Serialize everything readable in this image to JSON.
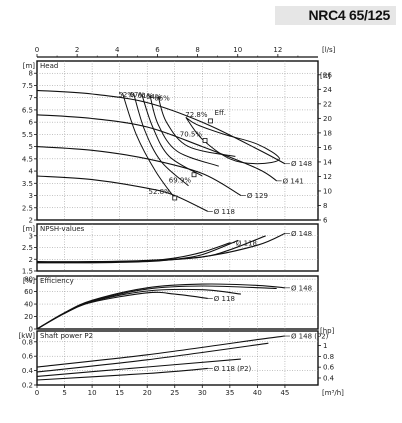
{
  "header": {
    "model_title": "NRC4 65/125"
  },
  "chart_data": [
    {
      "type": "line",
      "id": "head",
      "title": "Head",
      "x_axis_top": {
        "label": "[l/s]",
        "range": [
          0,
          14
        ],
        "ticks": [
          "0",
          "2",
          "4",
          "6",
          "8",
          "10",
          "12"
        ]
      },
      "y_left": {
        "unit": "[m]",
        "range": [
          2,
          8.5
        ],
        "ticks": [
          "2",
          "2.5",
          "3",
          "3.5",
          "4",
          "4.5",
          "5",
          "5.5",
          "6",
          "6.5",
          "7",
          "7.5",
          "8"
        ]
      },
      "y_right": {
        "unit": "[ft]",
        "range": [
          6,
          27.9
        ],
        "ticks": [
          "6",
          "8",
          "10",
          "12",
          "14",
          "16",
          "18",
          "20",
          "22",
          "24",
          "26"
        ]
      },
      "series": [
        {
          "name": "Ø 148",
          "x": [
            0,
            10,
            20,
            30,
            40,
            45
          ],
          "y": [
            7.3,
            7.15,
            6.8,
            6.0,
            4.9,
            4.3
          ]
        },
        {
          "name": "Ø 141",
          "x": [
            0,
            10,
            20,
            30,
            40,
            43.5
          ],
          "y": [
            6.3,
            6.15,
            5.8,
            5.0,
            4.1,
            3.6
          ]
        },
        {
          "name": "Ø 129",
          "x": [
            0,
            10,
            20,
            30,
            37
          ],
          "y": [
            5.0,
            4.85,
            4.5,
            3.9,
            3.0
          ]
        },
        {
          "name": "Ø 118",
          "x": [
            0,
            10,
            20,
            25,
            31
          ],
          "y": [
            3.8,
            3.65,
            3.3,
            3.0,
            2.35
          ]
        }
      ],
      "efficiency_isolines": [
        {
          "label": "52%",
          "x": [
            15.5,
            18,
            21.5,
            25
          ],
          "y": [
            7.2,
            5.5,
            4.0,
            2.9
          ]
        },
        {
          "label": "67%",
          "x": [
            17.5,
            19.5,
            22.5,
            27.5
          ],
          "y": [
            7.2,
            5.7,
            4.4,
            3.4
          ]
        },
        {
          "label": "61%",
          "x": [
            19.0,
            21,
            24,
            30
          ],
          "y": [
            7.15,
            5.8,
            4.6,
            3.8
          ]
        },
        {
          "label": "64%",
          "x": [
            20.5,
            22,
            25.5,
            33
          ],
          "y": [
            7.1,
            5.9,
            4.8,
            4.2
          ]
        },
        {
          "label": "66%",
          "x": [
            22.0,
            23.5,
            27.5,
            36
          ],
          "y": [
            7.05,
            6.0,
            5.0,
            4.6
          ]
        }
      ],
      "efficiency_loop": {
        "x": [
          27,
          30,
          35,
          40,
          44,
          40,
          34,
          29,
          27
        ],
        "y": [
          6.2,
          5.3,
          4.5,
          4.3,
          4.5,
          5.1,
          5.5,
          5.9,
          6.2
        ]
      },
      "eff_curve_label": "Eff.",
      "markers": [
        {
          "label": "72.8%",
          "x": 31.5,
          "y": 6.05
        },
        {
          "label": "70.5%",
          "x": 30.5,
          "y": 5.25
        },
        {
          "label": "69.9%",
          "x": 28.5,
          "y": 3.85
        },
        {
          "label": "52.8%",
          "x": 25.0,
          "y": 2.9
        }
      ]
    },
    {
      "type": "line",
      "id": "npsh",
      "title": "NPSH-values",
      "y_left": {
        "unit": "[m]",
        "range": [
          1.5,
          3.5
        ],
        "ticks": [
          "1.5",
          "2",
          "2.5",
          "3"
        ]
      },
      "series": [
        {
          "name": "Ø 148",
          "x": [
            0,
            10,
            20,
            30,
            40,
            45
          ],
          "y": [
            1.9,
            1.9,
            1.95,
            2.1,
            2.6,
            3.1
          ]
        },
        {
          "name": "Ø 118",
          "x": [
            0,
            10,
            20,
            25,
            30,
            35
          ],
          "y": [
            1.88,
            1.88,
            1.93,
            2.05,
            2.3,
            2.7
          ]
        },
        {
          "name": "",
          "x": [
            0,
            10,
            20,
            25,
            30,
            36.5
          ],
          "y": [
            1.85,
            1.85,
            1.9,
            2.0,
            2.2,
            2.8
          ]
        },
        {
          "name": "",
          "x": [
            0,
            10,
            20,
            30,
            35,
            41.5
          ],
          "y": [
            1.87,
            1.87,
            1.92,
            2.1,
            2.4,
            3.0
          ]
        }
      ]
    },
    {
      "type": "line",
      "id": "efficiency",
      "title": "Efficiency",
      "y_left": {
        "unit": "[%]",
        "range": [
          0,
          85
        ],
        "ticks": [
          "0",
          "20",
          "40",
          "60",
          "80"
        ]
      },
      "series": [
        {
          "name": "Ø 148",
          "x": [
            0,
            5,
            10,
            20,
            30,
            40,
            45
          ],
          "y": [
            0,
            26,
            46,
            66,
            72,
            70,
            66
          ]
        },
        {
          "name": "Ø 118",
          "x": [
            0,
            5,
            10,
            20,
            25,
            31
          ],
          "y": [
            0,
            25,
            43,
            58,
            56,
            49
          ]
        },
        {
          "name": "",
          "x": [
            0,
            5,
            10,
            20,
            30,
            37
          ],
          "y": [
            0,
            25,
            44,
            61,
            63,
            56
          ]
        },
        {
          "name": "",
          "x": [
            0,
            5,
            10,
            20,
            30,
            43.5
          ],
          "y": [
            0,
            26,
            45,
            64,
            69,
            65
          ]
        }
      ]
    },
    {
      "type": "line",
      "id": "power",
      "title": "Shaft power P2",
      "x_axis_bottom": {
        "label": "[m³/h]",
        "range": [
          0,
          51
        ],
        "ticks": [
          "0",
          "5",
          "10",
          "15",
          "20",
          "25",
          "30",
          "35",
          "40",
          "45"
        ]
      },
      "y_left": {
        "unit": "[kW]",
        "range": [
          0.2,
          0.95
        ],
        "ticks": [
          "0.2",
          "0.4",
          "0.6",
          "0.8"
        ]
      },
      "y_right": {
        "unit": "[hp]",
        "range": [
          0.27,
          1.27
        ],
        "ticks": [
          "0.4",
          "0.6",
          "0.8",
          "1"
        ]
      },
      "series": [
        {
          "name": "Ø 148 (P2)",
          "x": [
            0,
            20,
            40,
            45
          ],
          "y": [
            0.45,
            0.62,
            0.83,
            0.88
          ]
        },
        {
          "name": "Ø 118 (P2)",
          "x": [
            0,
            20,
            31
          ],
          "y": [
            0.27,
            0.36,
            0.43
          ]
        },
        {
          "name": "",
          "x": [
            0,
            20,
            37
          ],
          "y": [
            0.32,
            0.45,
            0.56
          ]
        },
        {
          "name": "",
          "x": [
            0,
            20,
            42
          ],
          "y": [
            0.38,
            0.55,
            0.78
          ]
        }
      ]
    }
  ]
}
